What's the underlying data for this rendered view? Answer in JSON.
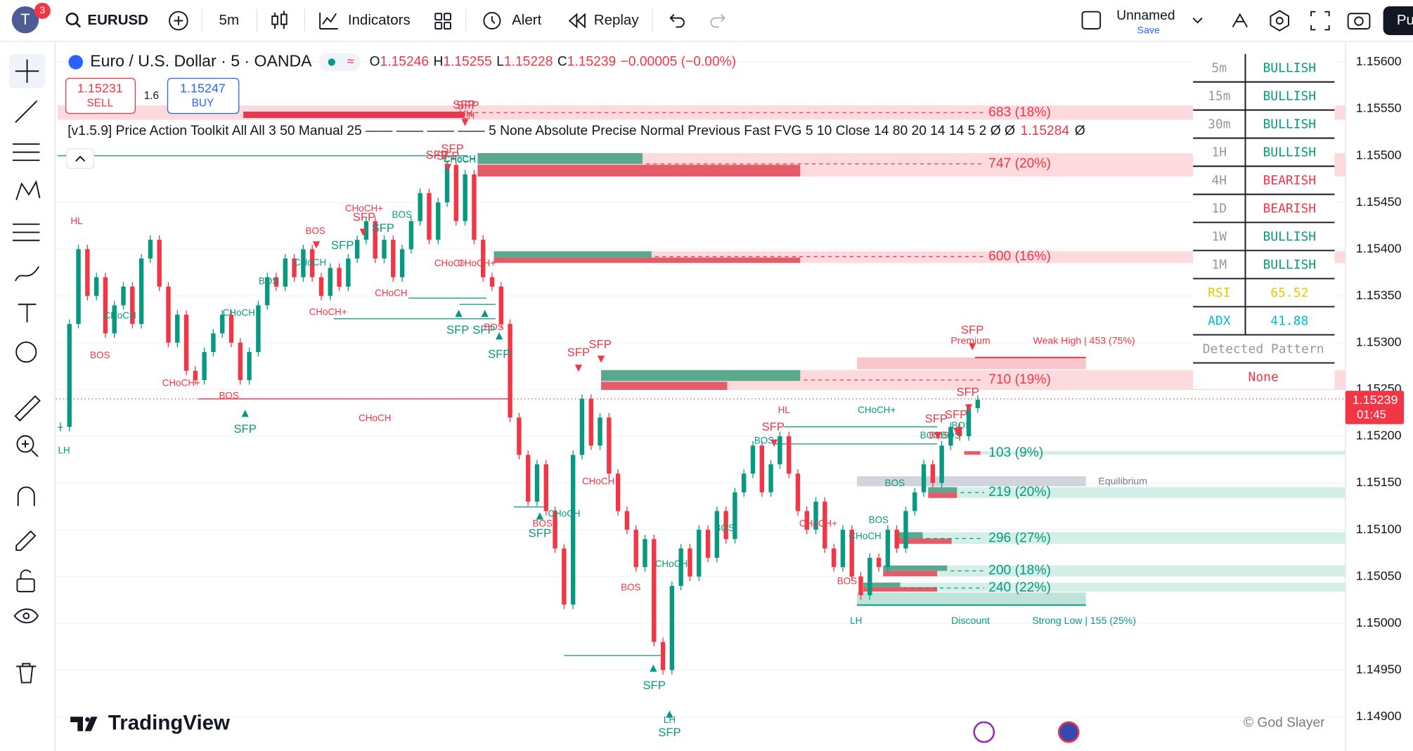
{
  "toolbar": {
    "avatar": "T",
    "badge": "3",
    "symbol": "EURUSD",
    "interval": "5m",
    "indicators": "Indicators",
    "alert": "Alert",
    "replay": "Replay",
    "layout_name": "Unnamed",
    "save": "Save",
    "publish": "Pu"
  },
  "legend": {
    "title": "Euro / U.S. Dollar · 5 · OANDA",
    "o": "O",
    "open": "1.15246",
    "h": "H",
    "high": "1.15255",
    "l": "L",
    "low": "1.15228",
    "c": "C",
    "close": "1.15239",
    "change": "−0.00005 (−0.00%)"
  },
  "trade": {
    "sell_price": "1.15231",
    "sell": "SELL",
    "spread": "1.6",
    "buy_price": "1.15247",
    "buy": "BUY"
  },
  "indicator": {
    "text": "[v1.5.9] Price Action Toolkit All All 3 50 Manual 25 —— —— —— —— 5 None Absolute Precise Normal Previous Fast FVG 5 10 Close 14 80 20 14 14 5 2  Ø  Ø",
    "value": "1.15284",
    "end": "Ø"
  },
  "price_axis": {
    "ticks": [
      {
        "value": 1.156,
        "label": "1.15600"
      },
      {
        "value": 1.1555,
        "label": "1.15550"
      },
      {
        "value": 1.155,
        "label": "1.15500"
      },
      {
        "value": 1.1545,
        "label": "1.15450"
      },
      {
        "value": 1.154,
        "label": "1.15400"
      },
      {
        "value": 1.1535,
        "label": "1.15350"
      },
      {
        "value": 1.153,
        "label": "1.15300"
      },
      {
        "value": 1.1525,
        "label": "1.15250"
      },
      {
        "value": 1.152,
        "label": "1.15200"
      },
      {
        "value": 1.1515,
        "label": "1.15150"
      },
      {
        "value": 1.151,
        "label": "1.15100"
      },
      {
        "value": 1.1505,
        "label": "1.15050"
      },
      {
        "value": 1.15,
        "label": "1.15000"
      },
      {
        "value": 1.1495,
        "label": "1.14950"
      },
      {
        "value": 1.149,
        "label": "1.14900"
      }
    ],
    "current_price": "1.15239",
    "countdown": "01:45"
  },
  "closes": [
    1.1521,
    1.1532,
    1.154,
    1.1535,
    1.1537,
    1.1531,
    1.1534,
    1.1536,
    1.1532,
    1.1539,
    1.1541,
    1.1536,
    1.153,
    1.1533,
    1.1527,
    1.1526,
    1.1529,
    1.1531,
    1.1533,
    1.153,
    1.1526,
    1.1529,
    1.1534,
    1.1537,
    1.1536,
    1.1539,
    1.1537,
    1.154,
    1.1537,
    1.1535,
    1.1538,
    1.1536,
    1.1539,
    1.1541,
    1.1543,
    1.1539,
    1.1541,
    1.1537,
    1.154,
    1.1543,
    1.1546,
    1.1541,
    1.1545,
    1.1549,
    1.1543,
    1.1548,
    1.1541,
    1.1537,
    1.1536,
    1.1532,
    1.1522,
    1.1518,
    1.1513,
    1.1517,
    1.1512,
    1.1508,
    1.1502,
    1.1518,
    1.1524,
    1.1519,
    1.1522,
    1.1516,
    1.1512,
    1.151,
    1.1506,
    1.1509,
    1.1498,
    1.1495,
    1.1504,
    1.1508,
    1.1505,
    1.151,
    1.1507,
    1.1512,
    1.1509,
    1.1514,
    1.1516,
    1.1519,
    1.1514,
    1.1517,
    1.152,
    1.1516,
    1.1512,
    1.151,
    1.1513,
    1.1508,
    1.1506,
    1.151,
    1.1505,
    1.1503,
    1.1507,
    1.1506,
    1.151,
    1.1508,
    1.1512,
    1.1514,
    1.1517,
    1.1515,
    1.1519,
    1.1521,
    1.152,
    1.1523,
    1.15239
  ],
  "zones": [
    "683 (18%)",
    "747 (20%)",
    "600 (16%)",
    "710 (19%)",
    "103 (9%)",
    "219 (20%)",
    "296 (27%)",
    "200 (18%)",
    "240 (22%)"
  ],
  "zone_labels": {
    "weak_high": "Weak High | 453 (75%)",
    "premium": "Premium",
    "equilibrium": "Equilibrium",
    "discount": "Discount",
    "strong_low": "Strong Low | 155 (25%)"
  },
  "chart_labels": [
    "HL",
    "LH",
    "BOS",
    "CHoCH",
    "CHoCH+",
    "BOS",
    "SFP",
    "CHoCH",
    "BOS",
    "CHoCH",
    "BOS",
    "SFP",
    "CHoCH+",
    "CHoCH+",
    "SFP",
    "SFP",
    "BOS",
    "CHoCH",
    "CHoCH",
    "SFP",
    "SFP",
    "SFP",
    "CHoCH",
    "CHoCH",
    "CHoCH+",
    "SFP",
    "SFP",
    "BOS",
    "SFP",
    "SFP",
    "SFP",
    "CHoCH",
    "BOS",
    "CHoCH",
    "SFP",
    "CHoCH",
    "BOS",
    "SFP",
    "BOS",
    "HL",
    "SFP",
    "BOS",
    "CHoCH+",
    "CHoCH+",
    "CHoCH",
    "BOS",
    "BOS",
    "BOS",
    "LH",
    "SFP",
    "SFP",
    "BOS",
    "BOS",
    "SFP",
    "SFP",
    "BOS",
    "SFP",
    "LH",
    "SFP",
    "LH",
    "SFP",
    "BOS",
    "HH",
    "CHoCH"
  ],
  "mtf_table": {
    "rows": [
      [
        "5m",
        "BULLISH"
      ],
      [
        "15m",
        "BULLISH"
      ],
      [
        "30m",
        "BULLISH"
      ],
      [
        "1H",
        "BULLISH"
      ],
      [
        "4H",
        "BEARISH"
      ],
      [
        "1D",
        "BEARISH"
      ],
      [
        "1W",
        "BULLISH"
      ],
      [
        "1M",
        "BULLISH"
      ]
    ],
    "rsi": [
      "RSI",
      "65.52"
    ],
    "adx": [
      "ADX",
      "41.88"
    ],
    "pattern_header": "Detected Pattern",
    "pattern": "None"
  },
  "watermark": "TradingView",
  "credit": "© God Slayer"
}
